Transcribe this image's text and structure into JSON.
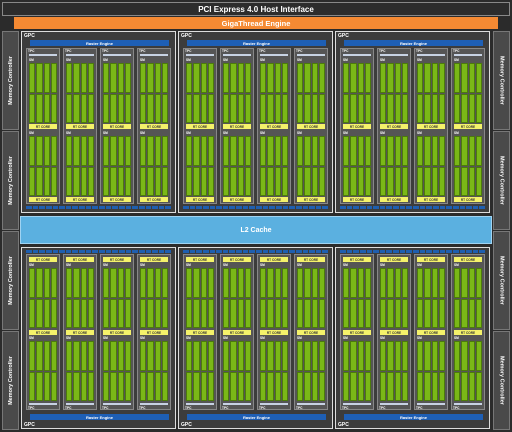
{
  "header": {
    "title": "PCI Express 4.0 Host Interface"
  },
  "giga": {
    "title": "GigaThread Engine"
  },
  "l2": {
    "title": "L2 Cache"
  },
  "mem": {
    "label": "Memory Controller",
    "count_per_side": 4
  },
  "gpc": {
    "label": "GPC",
    "raster_label": "Raster Engine",
    "tpc_label": "TPC",
    "polymorph_label": "PolyMorph Engine",
    "sm_label": "SM",
    "rt_label": "RT CORE",
    "tpcs_per_gpc": 4,
    "sms_per_tpc": 2,
    "count_top": 3,
    "count_bottom": 3
  },
  "colors": {
    "accent": "#f58a33",
    "l2": "#5bb0e0",
    "raster": "#1e5fb5",
    "core": "#7ab817",
    "rt": "#f4f26a"
  }
}
